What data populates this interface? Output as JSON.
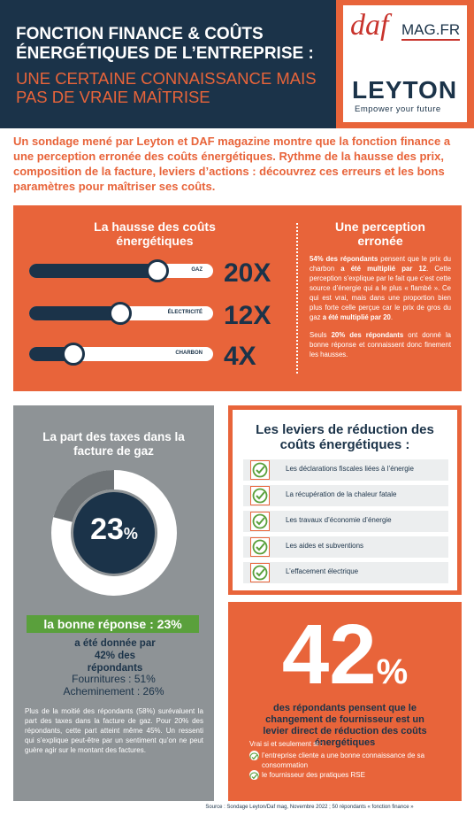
{
  "header": {
    "title": "FONCTION FINANCE & COÛTS ÉNERGÉTIQUES DE L’ENTREPRISE :",
    "subtitle": "UNE CERTAINE CONNAISSANCE MAIS PAS DE VRAIE MAÎTRISE",
    "logo_daf": "daf",
    "logo_mag": "MAG.FR",
    "logo_leyton": "LEYTON",
    "tagline": "Empower your future"
  },
  "intro": "Un sondage mené par Leyton et DAF magazine montre que la fonction finance a une perception erronée des coûts énergétiques. Rythme de la hausse des prix, composition de la facture, leviers d’actions : découvrez ces erreurs et les bons paramètres pour maîtriser ses coûts.",
  "hausse": {
    "title": "La hausse des coûts énergétiques",
    "items": [
      {
        "label": "GAZ",
        "value": "20X"
      },
      {
        "label": "ÉLECTRICITÉ",
        "value": "12X"
      },
      {
        "label": "CHARBON",
        "value": "4X"
      }
    ]
  },
  "perception": {
    "title": "Une perception erronée",
    "paragraph1": [
      "54% des répondants",
      " pensent que le prix du charbon ",
      "a été multiplié par 12",
      ". Cette perception s’explique par le fait que c’est cette source d’énergie qui a le plus « flambé ». Ce qui est vrai, mais dans une proportion bien plus forte celle perçue car le prix de gros du gaz ",
      "a été multiplié par 20",
      "."
    ],
    "paragraph2": [
      "Seuls ",
      "20% des répondants",
      " ont donné la bonne réponse et connaissent donc finement les hausses."
    ]
  },
  "taxes": {
    "title": "La part des taxes dans la facture de gaz",
    "donut_value": "23",
    "donut_unit": "%",
    "answer": "la bonne réponse : 23%",
    "given": "a été donnée par 42% des répondants",
    "fournitures": "Fournitures : 51%",
    "acheminement": "Acheminement : 26%",
    "paragraph": "Plus de la moitié des répondants (58%) surévaluent la part des taxes dans la facture de gaz. Pour 20% des répondants, cette part atteint même 45%. Un ressenti qui s’explique peut-être par un sentiment qu’on ne peut guère agir sur le montant des factures."
  },
  "leviers": {
    "title": "Les leviers de réduction des coûts énergétiques :",
    "items": [
      "Les déclarations fiscales liées à l’énergie",
      "La récupération de la chaleur fatale",
      "Les travaux d’économie d’énergie",
      "Les aides et subventions",
      "L’effacement électrique"
    ]
  },
  "stat": {
    "value": "42",
    "unit": "%",
    "text": "des répondants pensent que le changement de fournisseur est un levier direct de réduction des coûts énergétiques",
    "condition": "Vrai si et seulement si :",
    "list": [
      "l’entreprise cliente a une bonne connaissance de sa consommation",
      "le fournisseur des pratiques RSE"
    ]
  },
  "source": "Source : Sondage Leyton/Daf mag, Novembre 2022 ; 50 répondants « fonction finance »"
}
